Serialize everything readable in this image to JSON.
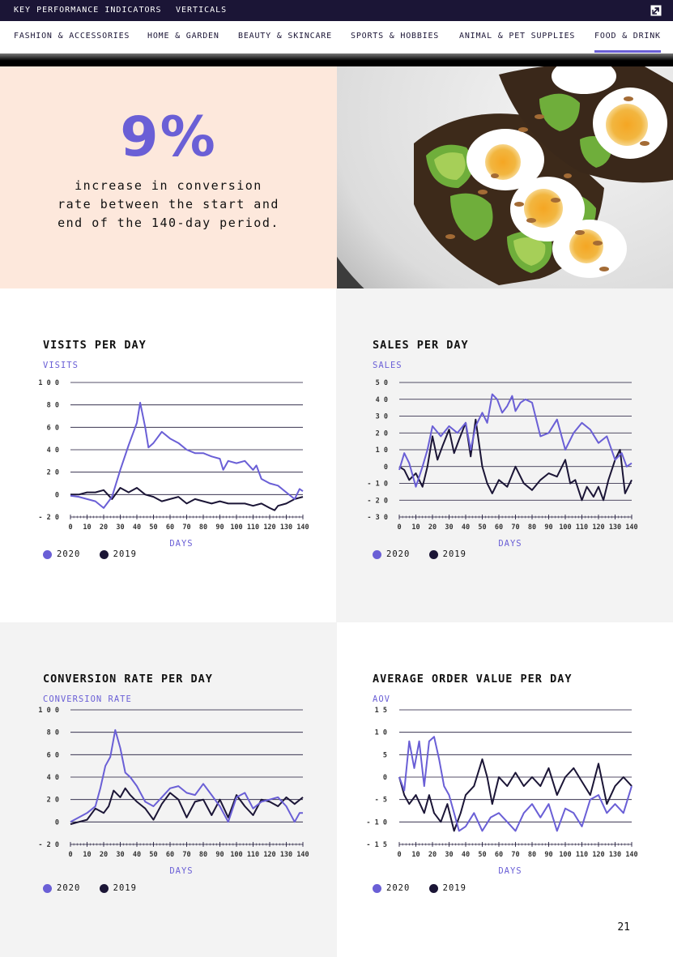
{
  "topbar": {
    "items": [
      "KEY PERFORMANCE INDICATORS",
      "VERTICALS"
    ],
    "logo_icon": "external-link-icon"
  },
  "nav": {
    "items": [
      "FASHION & ACCESSORIES",
      "HOME & GARDEN",
      "BEAUTY & SKINCARE",
      "SPORTS & HOBBIES",
      "ANIMAL & PET SUPPLIES",
      "FOOD & DRINK"
    ],
    "active": "FOOD & DRINK"
  },
  "hero": {
    "stat": "9%",
    "caption_lines": [
      "increase in conversion",
      "rate between the start and",
      "end of the 140-day period."
    ],
    "photo": "food-photo"
  },
  "colors": {
    "series_2020": "#6a5fd6",
    "series_2019": "#1b1536",
    "accent": "#6a5fd6"
  },
  "page_number": "21",
  "chart_data": [
    {
      "type": "line",
      "title": "VISITS PER DAY",
      "ylabel": "VISITS",
      "xlabel": "DAYS",
      "ylim": [
        -20,
        100
      ],
      "yticks": [
        -20,
        0,
        20,
        40,
        60,
        80,
        100
      ],
      "xlim": [
        0,
        140
      ],
      "xticks": [
        0,
        10,
        20,
        30,
        40,
        50,
        60,
        70,
        80,
        90,
        100,
        110,
        120,
        130,
        140
      ],
      "legend": "bottom-left",
      "series": [
        {
          "name": "2020",
          "x": [
            0,
            5,
            10,
            15,
            20,
            25,
            30,
            35,
            40,
            42,
            45,
            47,
            50,
            55,
            60,
            65,
            70,
            75,
            80,
            85,
            90,
            92,
            95,
            100,
            105,
            110,
            112,
            115,
            120,
            125,
            130,
            135,
            138,
            140
          ],
          "values": [
            -1,
            -2,
            -4,
            -6,
            -12,
            -2,
            22,
            44,
            64,
            82,
            60,
            42,
            46,
            56,
            50,
            46,
            40,
            37,
            37,
            34,
            32,
            22,
            30,
            28,
            30,
            22,
            26,
            14,
            10,
            8,
            2,
            -4,
            5,
            3
          ]
        },
        {
          "name": "2019",
          "x": [
            0,
            5,
            10,
            15,
            20,
            25,
            30,
            35,
            40,
            45,
            50,
            55,
            60,
            65,
            70,
            75,
            80,
            85,
            90,
            95,
            100,
            105,
            110,
            115,
            120,
            123,
            125,
            130,
            135,
            140
          ],
          "values": [
            0,
            0,
            2,
            2,
            4,
            -4,
            6,
            2,
            6,
            0,
            -2,
            -6,
            -4,
            -2,
            -8,
            -4,
            -6,
            -8,
            -6,
            -8,
            -8,
            -8,
            -10,
            -8,
            -12,
            -14,
            -10,
            -8,
            -4,
            -2
          ]
        }
      ]
    },
    {
      "type": "line",
      "title": "SALES PER DAY",
      "ylabel": "SALES",
      "xlabel": "DAYS",
      "ylim": [
        -30,
        50
      ],
      "yticks": [
        -30,
        -20,
        -10,
        0,
        10,
        20,
        30,
        40,
        50
      ],
      "xlim": [
        0,
        140
      ],
      "xticks": [
        0,
        10,
        20,
        30,
        40,
        50,
        60,
        70,
        80,
        90,
        100,
        110,
        120,
        130,
        140
      ],
      "legend": "bottom-left",
      "series": [
        {
          "name": "2020",
          "x": [
            0,
            3,
            6,
            10,
            14,
            17,
            20,
            25,
            30,
            35,
            40,
            43,
            46,
            50,
            53,
            56,
            59,
            62,
            65,
            68,
            70,
            73,
            76,
            80,
            85,
            90,
            95,
            100,
            105,
            110,
            115,
            120,
            125,
            130,
            134,
            137,
            140
          ],
          "values": [
            -2,
            8,
            2,
            -12,
            0,
            10,
            24,
            18,
            24,
            20,
            26,
            10,
            24,
            32,
            26,
            43,
            40,
            32,
            36,
            42,
            33,
            38,
            40,
            38,
            18,
            20,
            28,
            10,
            20,
            26,
            22,
            14,
            18,
            4,
            8,
            0,
            2
          ]
        },
        {
          "name": "2019",
          "x": [
            0,
            3,
            6,
            10,
            14,
            17,
            20,
            23,
            26,
            30,
            33,
            36,
            40,
            43,
            46,
            50,
            53,
            56,
            60,
            65,
            70,
            75,
            80,
            85,
            90,
            95,
            100,
            103,
            106,
            110,
            113,
            117,
            120,
            123,
            126,
            130,
            133,
            136,
            140
          ],
          "values": [
            0,
            -2,
            -8,
            -4,
            -12,
            0,
            18,
            4,
            12,
            22,
            8,
            16,
            26,
            6,
            28,
            0,
            -10,
            -16,
            -8,
            -12,
            0,
            -10,
            -14,
            -8,
            -4,
            -6,
            4,
            -10,
            -8,
            -20,
            -12,
            -18,
            -12,
            -20,
            -8,
            4,
            10,
            -16,
            -8
          ]
        }
      ]
    },
    {
      "type": "line",
      "title": "CONVERSION RATE PER DAY",
      "ylabel": "CONVERSION RATE",
      "xlabel": "DAYS",
      "ylim": [
        -20,
        100
      ],
      "yticks": [
        -20,
        0,
        20,
        40,
        60,
        80,
        100
      ],
      "xlim": [
        0,
        140
      ],
      "xticks": [
        0,
        10,
        20,
        30,
        40,
        50,
        60,
        70,
        80,
        90,
        100,
        110,
        120,
        130,
        140
      ],
      "legend": "bottom-left",
      "series": [
        {
          "name": "2020",
          "x": [
            0,
            5,
            10,
            15,
            18,
            21,
            24,
            27,
            30,
            33,
            36,
            40,
            45,
            50,
            55,
            60,
            65,
            70,
            75,
            80,
            85,
            90,
            95,
            100,
            105,
            110,
            115,
            120,
            125,
            130,
            135,
            138,
            140
          ],
          "values": [
            0,
            4,
            8,
            14,
            30,
            50,
            58,
            82,
            66,
            44,
            40,
            32,
            18,
            14,
            22,
            30,
            32,
            26,
            24,
            34,
            24,
            14,
            0,
            22,
            26,
            12,
            18,
            20,
            22,
            14,
            0,
            8,
            8
          ]
        },
        {
          "name": "2019",
          "x": [
            0,
            5,
            10,
            15,
            20,
            23,
            26,
            30,
            33,
            36,
            40,
            45,
            50,
            55,
            60,
            65,
            70,
            75,
            80,
            85,
            90,
            95,
            100,
            105,
            110,
            115,
            120,
            125,
            130,
            135,
            140
          ],
          "values": [
            -2,
            0,
            2,
            12,
            8,
            14,
            28,
            22,
            30,
            24,
            18,
            12,
            2,
            16,
            26,
            20,
            4,
            18,
            20,
            6,
            20,
            4,
            24,
            14,
            6,
            20,
            18,
            14,
            22,
            16,
            22
          ]
        }
      ]
    },
    {
      "type": "line",
      "title": "AVERAGE ORDER VALUE PER DAY",
      "ylabel": "AOV",
      "xlabel": "DAYS",
      "ylim": [
        -15,
        15
      ],
      "yticks": [
        -15,
        -10,
        -5,
        0,
        5,
        10,
        15
      ],
      "xlim": [
        0,
        140
      ],
      "xticks": [
        0,
        10,
        20,
        30,
        40,
        50,
        60,
        70,
        80,
        90,
        100,
        110,
        120,
        130,
        140
      ],
      "legend": "bottom-left",
      "series": [
        {
          "name": "2020",
          "x": [
            0,
            3,
            6,
            9,
            12,
            15,
            18,
            21,
            24,
            27,
            30,
            33,
            36,
            40,
            45,
            50,
            55,
            60,
            65,
            70,
            75,
            80,
            85,
            90,
            95,
            100,
            105,
            110,
            115,
            120,
            125,
            130,
            135,
            140
          ],
          "values": [
            0,
            -3,
            8,
            2,
            8,
            -2,
            8,
            9,
            4,
            -2,
            -4,
            -8,
            -12,
            -11,
            -8,
            -12,
            -9,
            -8,
            -10,
            -12,
            -8,
            -6,
            -9,
            -6,
            -12,
            -7,
            -8,
            -11,
            -5,
            -4,
            -8,
            -6,
            -8,
            -2
          ]
        },
        {
          "name": "2019",
          "x": [
            0,
            3,
            6,
            10,
            15,
            18,
            21,
            25,
            29,
            33,
            37,
            40,
            45,
            50,
            53,
            56,
            60,
            65,
            70,
            75,
            80,
            85,
            90,
            95,
            100,
            105,
            110,
            115,
            120,
            125,
            130,
            135,
            140
          ],
          "values": [
            0,
            -4,
            -6,
            -4,
            -8,
            -4,
            -8,
            -10,
            -6,
            -12,
            -8,
            -4,
            -2,
            4,
            0,
            -6,
            0,
            -2,
            1,
            -2,
            0,
            -2,
            2,
            -4,
            0,
            2,
            -1,
            -4,
            3,
            -6,
            -2,
            0,
            -2
          ]
        }
      ]
    }
  ]
}
